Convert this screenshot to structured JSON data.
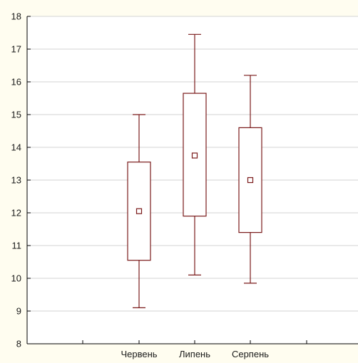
{
  "chart_data": {
    "type": "box",
    "title": "",
    "xlabel": "",
    "ylabel": "",
    "categories": [
      "Червень",
      "Липень",
      "Серпень"
    ],
    "series": [
      {
        "values": [
          {
            "category": "Червень",
            "center": 12.05,
            "box_low": 10.55,
            "box_high": 13.55,
            "whisker_low": 9.1,
            "whisker_high": 15.0
          },
          {
            "category": "Липень",
            "center": 13.75,
            "box_low": 11.9,
            "box_high": 15.65,
            "whisker_low": 10.1,
            "whisker_high": 17.45
          },
          {
            "category": "Серпень",
            "center": 13.0,
            "box_low": 11.4,
            "box_high": 14.6,
            "whisker_low": 9.85,
            "whisker_high": 16.2
          }
        ]
      }
    ],
    "ylim": [
      8,
      18
    ],
    "yticks": [
      "8",
      "9",
      "10",
      "11",
      "12",
      "13",
      "14",
      "15",
      "16",
      "17",
      "18"
    ],
    "grid": true,
    "colors": {
      "box": "#7a1a1a",
      "grid": "#d3d3d3",
      "axis": "#000000",
      "plot_bg": "#ffffff",
      "page_bg": "#fffdf0"
    }
  }
}
